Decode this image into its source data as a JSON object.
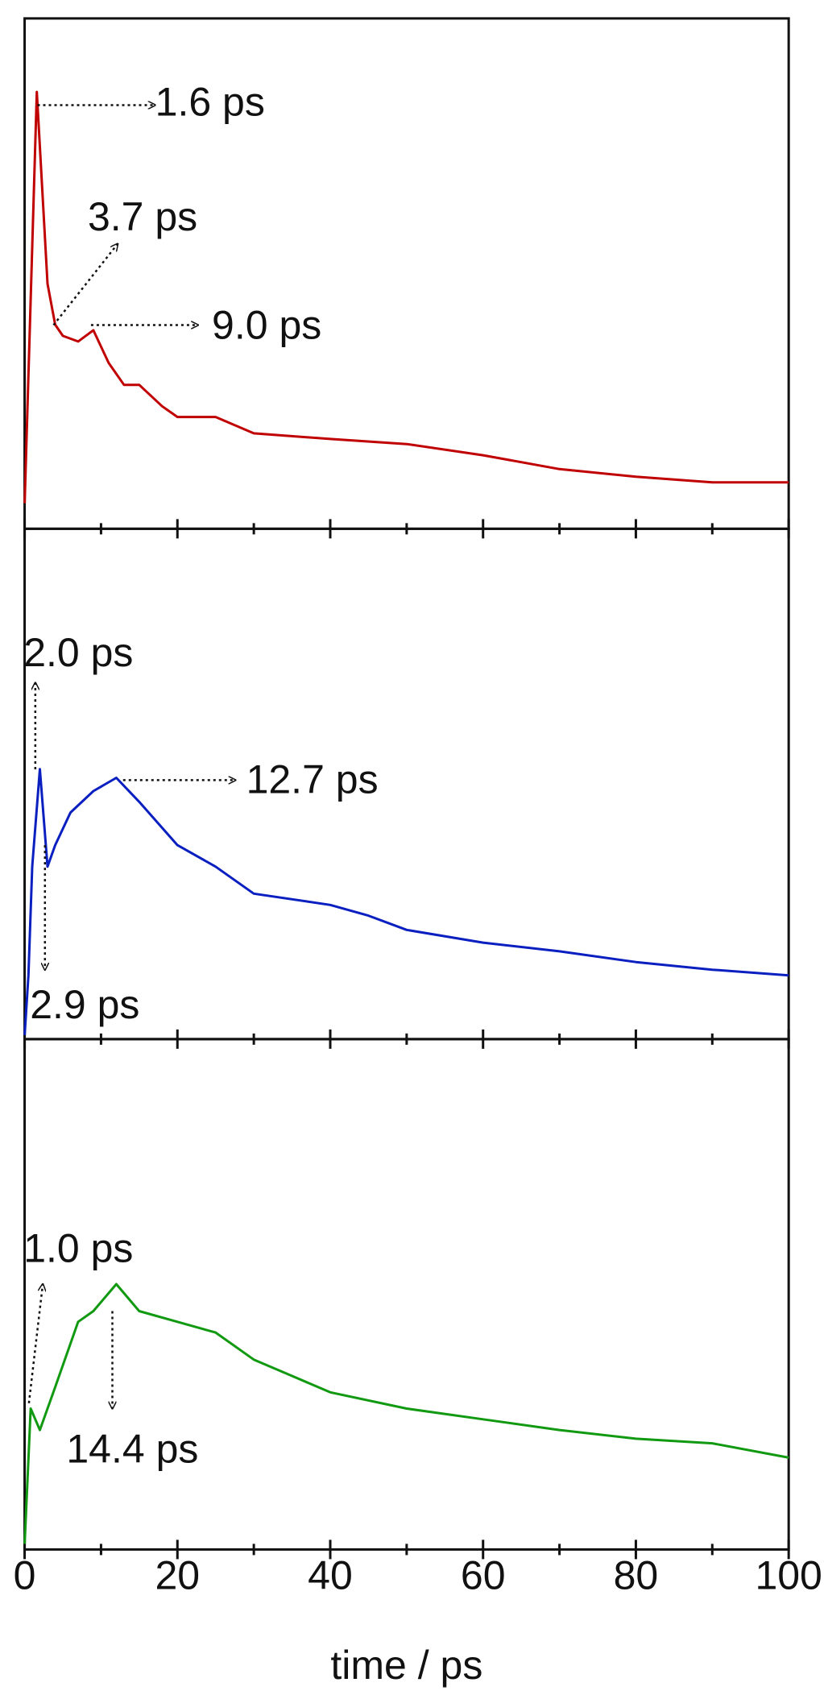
{
  "chart_data": [
    {
      "type": "line",
      "xlim": [
        0,
        100
      ],
      "ylim": [
        0,
        1
      ],
      "xticks": [
        0,
        20,
        40,
        60,
        80,
        100
      ],
      "xminor": [
        10,
        30,
        50,
        70,
        90
      ],
      "series": [
        {
          "color": "#c00000",
          "x": [
            0,
            1.6,
            3,
            4,
            5,
            7,
            9,
            11,
            13,
            15,
            18,
            20,
            25,
            30,
            40,
            50,
            60,
            70,
            80,
            90,
            100
          ],
          "values": [
            0.05,
            0.856,
            0.48,
            0.4,
            0.378,
            0.367,
            0.389,
            0.325,
            0.282,
            0.282,
            0.24,
            0.219,
            0.219,
            0.187,
            0.176,
            0.166,
            0.144,
            0.117,
            0.102,
            0.091,
            0.091
          ]
        }
      ],
      "annotations": [
        "1.6 ps",
        "3.7 ps",
        "9.0 ps"
      ]
    },
    {
      "type": "line",
      "xlim": [
        0,
        100
      ],
      "ylim": [
        0,
        1
      ],
      "xticks": [
        0,
        20,
        40,
        60,
        80,
        100
      ],
      "xminor": [
        10,
        30,
        50,
        70,
        90
      ],
      "series": [
        {
          "color": "#0a1fc0",
          "x": [
            0,
            0.5,
            1,
            2,
            3,
            4,
            6,
            9,
            12,
            15,
            20,
            25,
            30,
            40,
            45,
            50,
            60,
            70,
            80,
            90,
            100
          ],
          "values": [
            0.008,
            0.125,
            0.338,
            0.529,
            0.338,
            0.38,
            0.444,
            0.486,
            0.512,
            0.465,
            0.38,
            0.338,
            0.285,
            0.263,
            0.242,
            0.214,
            0.189,
            0.172,
            0.151,
            0.136,
            0.125
          ]
        }
      ],
      "annotations": [
        "2.0 ps",
        "12.7 ps",
        "2.9 ps"
      ]
    },
    {
      "type": "line",
      "xlim": [
        0,
        100
      ],
      "ylim": [
        0,
        1
      ],
      "xticks": [
        0,
        20,
        40,
        60,
        80,
        100
      ],
      "xminor": [
        10,
        30,
        50,
        70,
        90
      ],
      "xlabel": "time / ps",
      "series": [
        {
          "color": "#119911",
          "x": [
            0,
            0.8,
            2,
            4,
            7,
            9,
            12,
            15,
            20,
            25,
            30,
            35,
            40,
            50,
            60,
            70,
            80,
            90,
            100
          ],
          "values": [
            0.011,
            0.276,
            0.234,
            0.318,
            0.446,
            0.467,
            0.52,
            0.467,
            0.446,
            0.425,
            0.372,
            0.34,
            0.308,
            0.276,
            0.255,
            0.234,
            0.217,
            0.208,
            0.18
          ]
        }
      ],
      "annotations": [
        "1.0 ps",
        "14.4 ps"
      ]
    }
  ]
}
